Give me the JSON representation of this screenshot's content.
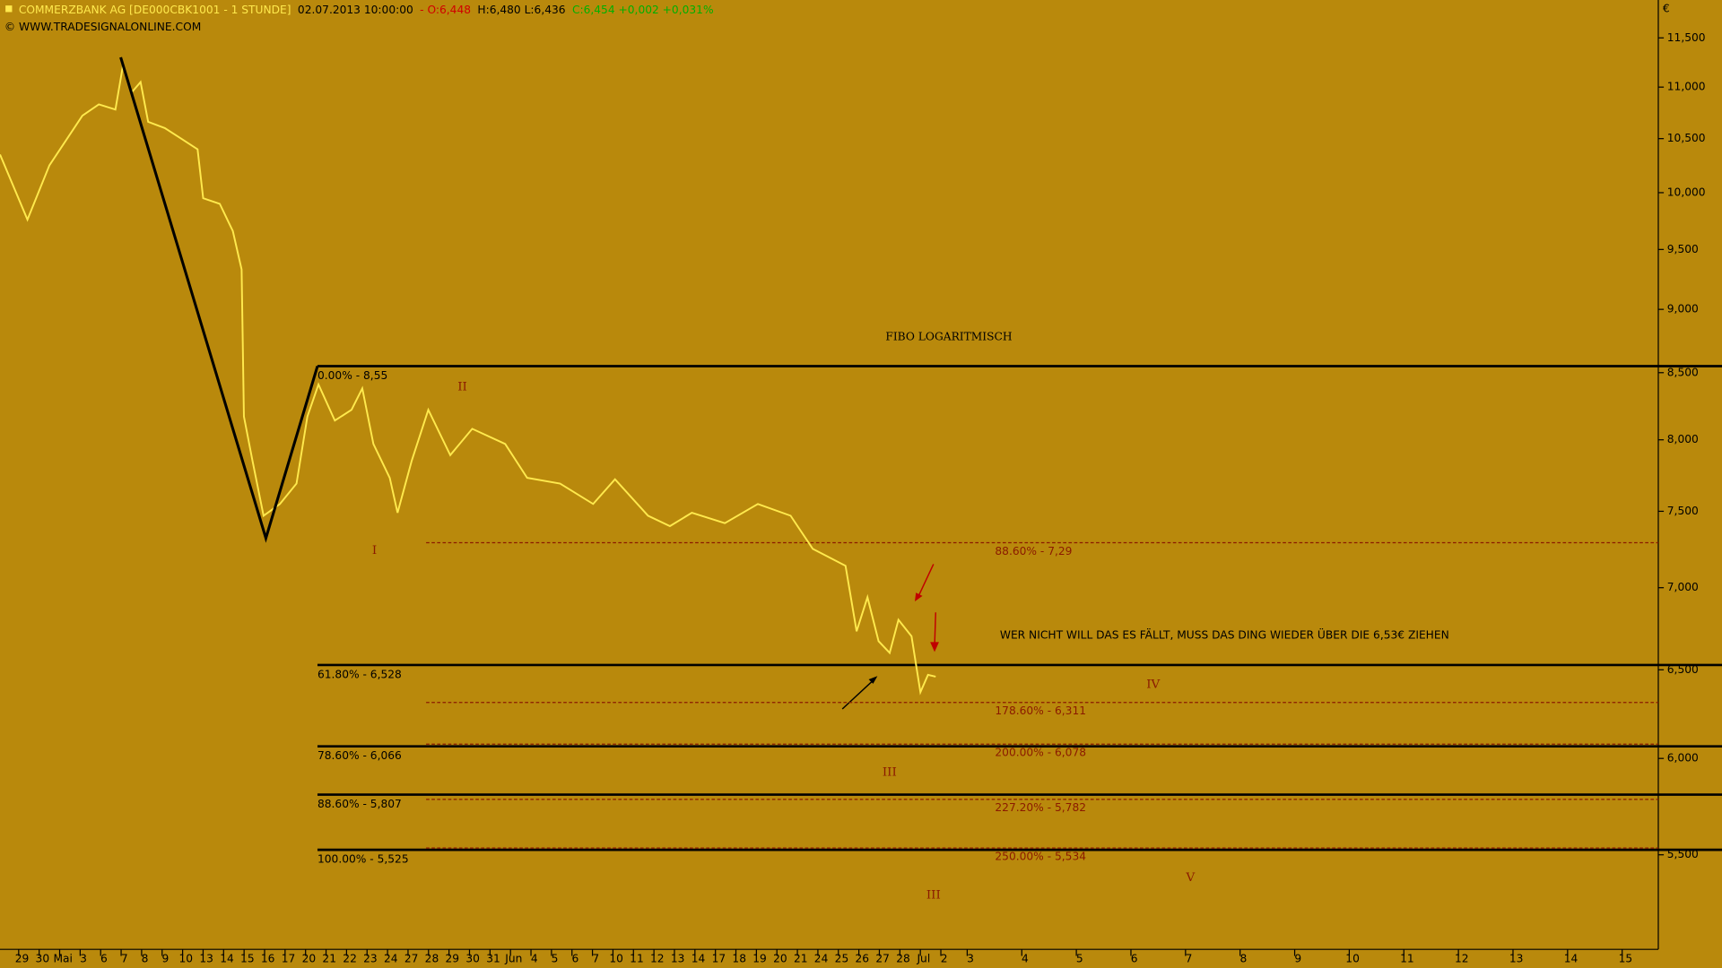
{
  "chart_data": {
    "type": "line",
    "header": [
      {
        "text": "COMMERZBANK AG [DE000CBK1001 - 1 STUNDE]",
        "color": "#ffe94d"
      },
      {
        "text": "02.07.2013 10:00:00",
        "color": "#000000"
      },
      {
        "text": "- O:6,448",
        "color": "#d00000"
      },
      {
        "text": "H:6,480 L:6,436",
        "color": "#000000"
      },
      {
        "text": "C:6,454 +0,002 +0,031%",
        "color": "#00b000"
      }
    ],
    "copyright": "© WWW.TRADESIGNALONLINE.COM",
    "currency": "€",
    "title": "FIBO LOGARITMISCH",
    "note": "WER NICHT WILL DAS ES FÄLLT, MUSS DAS DING WIEDER ÜBER DIE 6,53€ ZIEHEN",
    "waves": [
      "II",
      "I",
      "III",
      "IV",
      "V",
      "III"
    ],
    "log_scale": true,
    "ylim": [
      5.05,
      11.9
    ],
    "yticks": [
      {
        "value": 5.5,
        "label": "5,500"
      },
      {
        "value": 6,
        "label": "6,000"
      },
      {
        "value": 6.5,
        "label": "6,500"
      },
      {
        "value": 7,
        "label": "7,000"
      },
      {
        "value": 7.5,
        "label": "7,500"
      },
      {
        "value": 8,
        "label": "8,000"
      },
      {
        "value": 8.5,
        "label": "8,500"
      },
      {
        "value": 9,
        "label": "9,000"
      },
      {
        "value": 9.5,
        "label": "9,500"
      },
      {
        "value": 10,
        "label": "10,000"
      },
      {
        "value": 10.5,
        "label": "10,500"
      },
      {
        "value": 11,
        "label": "11,000"
      },
      {
        "value": 11.5,
        "label": "11,500"
      }
    ],
    "categories": [
      "29",
      "30",
      "Mai",
      "3",
      "6",
      "7",
      "8",
      "9",
      "10",
      "13",
      "14",
      "15",
      "16",
      "17",
      "20",
      "21",
      "22",
      "23",
      "24",
      "27",
      "28",
      "29",
      "30",
      "31",
      "Jun",
      "4",
      "5",
      "6",
      "7",
      "10",
      "11",
      "12",
      "13",
      "14",
      "17",
      "18",
      "19",
      "20",
      "21",
      "24",
      "25",
      "26",
      "27",
      "28",
      "Jul",
      "2",
      "3",
      "4",
      "5",
      "6",
      "7",
      "8",
      "9",
      "10",
      "11",
      "12",
      "13",
      "14",
      "15"
    ],
    "series": [
      {
        "name": "Commerzbank",
        "color": "#ffe94d",
        "x": [
          -1.07,
          0.27,
          1.34,
          2.95,
          3.75,
          4.56,
          4.93,
          5.36,
          5.79,
          6.16,
          6.97,
          7.77,
          8.57,
          8.84,
          9.65,
          10.29,
          10.72,
          10.83,
          11.25,
          11.79,
          12.59,
          13.4,
          13.93,
          14.47,
          15.27,
          16.08,
          16.61,
          17.15,
          17.95,
          18.33,
          19.02,
          19.83,
          20.9,
          21.97,
          23.58,
          24.65,
          26.26,
          27.87,
          28.94,
          30.55,
          31.62,
          32.69,
          34.3,
          35.91,
          37.51,
          38.59,
          40.19,
          40.73,
          41.26,
          41.8,
          42.34,
          42.77,
          43.41,
          43.84,
          44.21,
          44.59
        ],
        "values": [
          10.35,
          9.76,
          10.25,
          10.72,
          10.83,
          10.78,
          11.22,
          10.95,
          11.05,
          10.66,
          10.6,
          10.5,
          10.4,
          9.95,
          9.9,
          9.66,
          9.33,
          8.17,
          7.85,
          7.47,
          7.55,
          7.69,
          8.17,
          8.41,
          8.14,
          8.22,
          8.38,
          7.97,
          7.73,
          7.49,
          7.85,
          8.22,
          7.89,
          8.08,
          7.97,
          7.73,
          7.69,
          7.55,
          7.72,
          7.47,
          7.4,
          7.49,
          7.42,
          7.55,
          7.47,
          7.25,
          7.14,
          6.73,
          6.94,
          6.67,
          6.6,
          6.8,
          6.7,
          6.37,
          6.47,
          6.46
        ]
      },
      {
        "name": "Zigzag",
        "color": "#000000",
        "x": [
          4.82,
          11.9,
          14.42
        ],
        "values": [
          11.3,
          7.32,
          8.55
        ]
      }
    ],
    "retracements": [
      {
        "label": "0.00% - 8,55",
        "value": 8.55
      },
      {
        "label": "61.80% - 6,528",
        "value": 6.528
      },
      {
        "label": "78.60% - 6,066",
        "value": 6.066
      },
      {
        "label": "88.60% - 5,807",
        "value": 5.807
      },
      {
        "label": "100.00% - 5,525",
        "value": 5.525
      }
    ],
    "extensions": [
      {
        "label": "88.60% - 7,29",
        "value": 7.29
      },
      {
        "label": "178.60% - 6,311",
        "value": 6.311
      },
      {
        "label": "200.00% - 6,078",
        "value": 6.078
      },
      {
        "label": "227.20% - 5,782",
        "value": 5.782
      },
      {
        "label": "250.00% - 5,534",
        "value": 5.534
      }
    ]
  }
}
